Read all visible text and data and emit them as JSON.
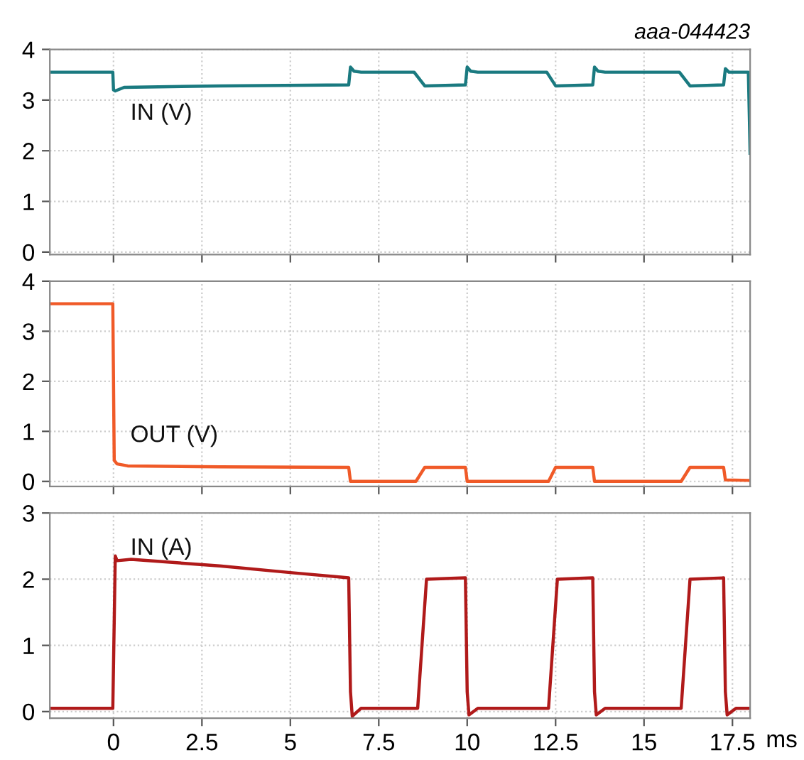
{
  "chart_data": [
    {
      "type": "line",
      "annotations": [
        "aaa-044423"
      ],
      "xlim": [
        -1.8,
        18
      ],
      "ylim": [
        -0.05,
        4
      ],
      "yticks": [
        0,
        1,
        2,
        3,
        4
      ],
      "xticks": [
        0,
        2.5,
        5,
        7.5,
        10,
        12.5,
        15,
        17.5
      ],
      "grid": true,
      "tick_labels": "y",
      "series": [
        {
          "name": "IN (V)",
          "color": "#1a7a80",
          "x": [
            -1.8,
            -0.02,
            0,
            0.05,
            0.3,
            3,
            6.65,
            6.7,
            6.8,
            7,
            8.5,
            8.8,
            9.95,
            10,
            10.1,
            10.3,
            12.25,
            12.5,
            13.55,
            13.6,
            13.7,
            13.9,
            16.0,
            16.3,
            17.25,
            17.3,
            17.4,
            17.6,
            17.95,
            18
          ],
          "values": [
            3.55,
            3.55,
            3.2,
            3.18,
            3.25,
            3.28,
            3.3,
            3.65,
            3.57,
            3.55,
            3.55,
            3.28,
            3.3,
            3.65,
            3.57,
            3.55,
            3.55,
            3.28,
            3.3,
            3.65,
            3.57,
            3.55,
            3.55,
            3.28,
            3.3,
            3.62,
            3.55,
            3.55,
            3.55,
            1.95
          ]
        }
      ]
    },
    {
      "type": "line",
      "xlim": [
        -1.8,
        18
      ],
      "ylim": [
        -0.1,
        4
      ],
      "yticks": [
        0,
        1,
        2,
        3,
        4
      ],
      "xticks": [
        0,
        2.5,
        5,
        7.5,
        10,
        12.5,
        15,
        17.5
      ],
      "grid": true,
      "tick_labels": "y",
      "series": [
        {
          "name": "OUT (V)",
          "color": "#f05a28",
          "x": [
            -1.8,
            -0.02,
            0.02,
            0.1,
            0.4,
            3,
            6.65,
            6.7,
            8.55,
            8.8,
            9.95,
            10,
            12.3,
            12.5,
            13.55,
            13.6,
            16.05,
            16.3,
            17.25,
            17.3,
            18
          ],
          "values": [
            3.55,
            3.55,
            0.42,
            0.35,
            0.31,
            0.29,
            0.28,
            0.0,
            0.0,
            0.28,
            0.28,
            0.0,
            0.0,
            0.28,
            0.28,
            0.0,
            0.0,
            0.28,
            0.28,
            0.03,
            0.02
          ]
        }
      ]
    },
    {
      "type": "line",
      "xlabel": "ms",
      "xlim": [
        -1.8,
        18
      ],
      "ylim": [
        -0.1,
        3
      ],
      "yticks": [
        0,
        1,
        2,
        3
      ],
      "xticks": [
        0,
        2.5,
        5,
        7.5,
        10,
        12.5,
        15,
        17.5
      ],
      "grid": true,
      "series": [
        {
          "name": "IN (A)",
          "color": "#b01a1a",
          "x": [
            -1.8,
            -0.02,
            0.05,
            0.1,
            0.5,
            3,
            5,
            6.65,
            6.7,
            6.75,
            7,
            8.6,
            8.85,
            9.95,
            10,
            10.05,
            10.3,
            12.3,
            12.55,
            13.55,
            13.6,
            13.65,
            13.9,
            16.05,
            16.3,
            17.25,
            17.3,
            17.35,
            17.6,
            18
          ],
          "values": [
            0.05,
            0.05,
            2.35,
            2.28,
            2.3,
            2.2,
            2.1,
            2.02,
            0.3,
            -0.07,
            0.05,
            0.05,
            2.0,
            2.02,
            0.3,
            -0.05,
            0.05,
            0.05,
            2.0,
            2.02,
            0.3,
            -0.05,
            0.05,
            0.05,
            2.0,
            2.02,
            0.3,
            -0.05,
            0.05,
            0.05
          ]
        }
      ]
    }
  ]
}
